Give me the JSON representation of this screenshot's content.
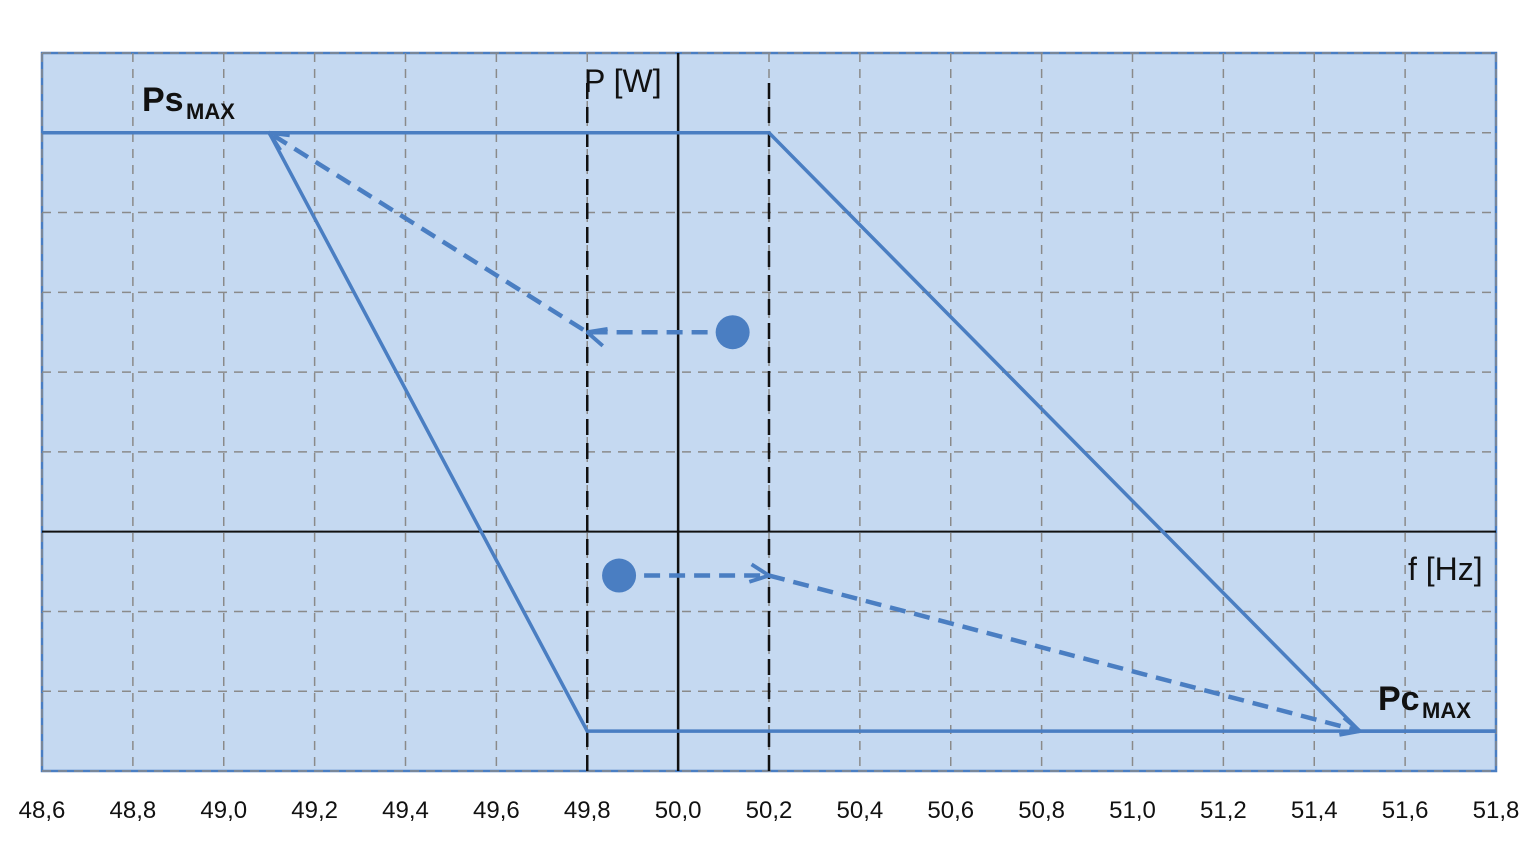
{
  "chart_data": {
    "type": "line",
    "x_axis": {
      "label": "f [Hz]",
      "ticks": [
        "48,6",
        "48,8",
        "49,0",
        "49,2",
        "49,4",
        "49,6",
        "49,8",
        "50,0",
        "50,2",
        "50,4",
        "50,6",
        "50,8",
        "51,0",
        "51,2",
        "51,4",
        "51,6",
        "51,8"
      ],
      "range": [
        48.6,
        51.8
      ]
    },
    "y_axis": {
      "label": "P [W]",
      "range": [
        -6,
        12
      ],
      "tick_labels_shown": false
    },
    "grid": true,
    "grid_style": "dashed",
    "background_color": "#c5d9f1",
    "line_color": "#4a7ec2",
    "series": [
      {
        "style": "solid",
        "points": [
          [
            48.6,
            10
          ],
          [
            50.2,
            10
          ],
          [
            51.5,
            -5
          ],
          [
            51.8,
            -5
          ]
        ]
      },
      {
        "style": "solid",
        "points": [
          [
            49.1,
            10
          ],
          [
            49.8,
            -5
          ],
          [
            51.8,
            -5
          ]
        ]
      },
      {
        "style": "dashed-arrow",
        "points": [
          [
            50.12,
            5
          ],
          [
            49.8,
            5
          ],
          [
            49.1,
            10
          ]
        ]
      },
      {
        "style": "dashed-arrow",
        "points": [
          [
            49.87,
            -1.1
          ],
          [
            50.2,
            -1.1
          ],
          [
            51.5,
            -5
          ]
        ]
      }
    ],
    "start_markers": [
      [
        50.12,
        5
      ],
      [
        49.87,
        -1.1
      ]
    ],
    "reference_lines": [
      {
        "x": 49.8,
        "style": "dashed"
      },
      {
        "x": 50.2,
        "style": "dashed"
      },
      {
        "x": 50.0,
        "style": "solid"
      }
    ],
    "annotations": [
      {
        "main": "Ps",
        "sub": "MAX",
        "anchor": [
          48.8,
          10
        ]
      },
      {
        "main": "Pc",
        "sub": "MAX",
        "anchor": [
          51.3,
          -5
        ]
      }
    ]
  }
}
